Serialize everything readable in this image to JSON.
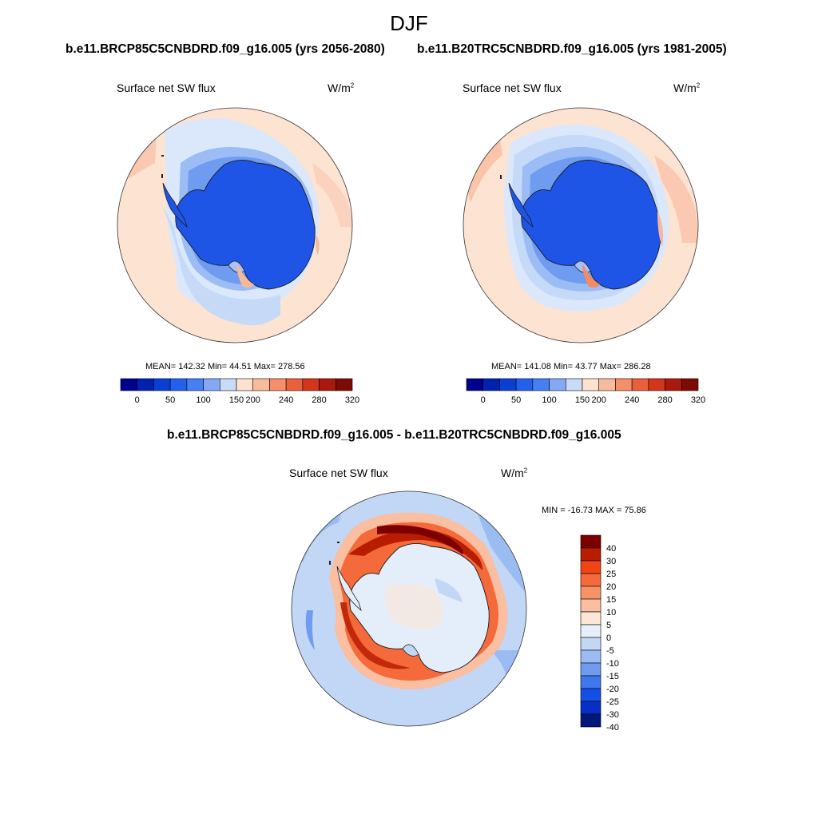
{
  "season": "DJF",
  "panels": [
    {
      "case": "b.e11.BRCP85C5CNBDRD.f09_g16.005 (yrs 2056-2080)",
      "variable": "Surface net SW flux",
      "units_base": "W/m",
      "units_exp": "2",
      "stats": "MEAN= 142.32  Min=  44.51  Max= 278.56"
    },
    {
      "case": "b.e11.B20TRC5CNBDRD.f09_g16.005 (yrs 1981-2005)",
      "variable": "Surface net SW flux",
      "units_base": "W/m",
      "units_exp": "2",
      "stats": "MEAN= 141.08  Min=  43.77  Max= 286.28"
    }
  ],
  "diff": {
    "title": "b.e11.BRCP85C5CNBDRD.f09_g16.005 - b.e11.B20TRC5CNBDRD.f09_g16.005",
    "variable": "Surface net SW flux",
    "units_base": "W/m",
    "units_exp": "2",
    "stats": "MIN = -16.73 MAX =  75.86"
  },
  "abs_colorbar": {
    "colors": [
      "#00008f",
      "#0022b0",
      "#0a3fd6",
      "#2260ee",
      "#4680f2",
      "#84a8f4",
      "#c8dcf8",
      "#fde2d0",
      "#f9bb9d",
      "#f48f6a",
      "#ea5f3c",
      "#d3361b",
      "#aa1a0c",
      "#7d0b04"
    ],
    "labels": [
      "0",
      "50",
      "100",
      "150",
      "200",
      "240",
      "280",
      "320"
    ]
  },
  "diff_colorbar": {
    "colors_top_to_bottom": [
      "#7d0000",
      "#b81d00",
      "#f04414",
      "#f46a3a",
      "#f79266",
      "#fabea0",
      "#fde6d5",
      "#e6f0fb",
      "#c2d6f6",
      "#9bbcf2",
      "#6e9cf0",
      "#3e78ec",
      "#1550e4",
      "#0530c8",
      "#00187a"
    ],
    "labels_top_to_bottom": [
      "40",
      "30",
      "25",
      "20",
      "15",
      "10",
      "5",
      "0",
      "-5",
      "-10",
      "-15",
      "-20",
      "-25",
      "-30",
      "-40"
    ]
  }
}
